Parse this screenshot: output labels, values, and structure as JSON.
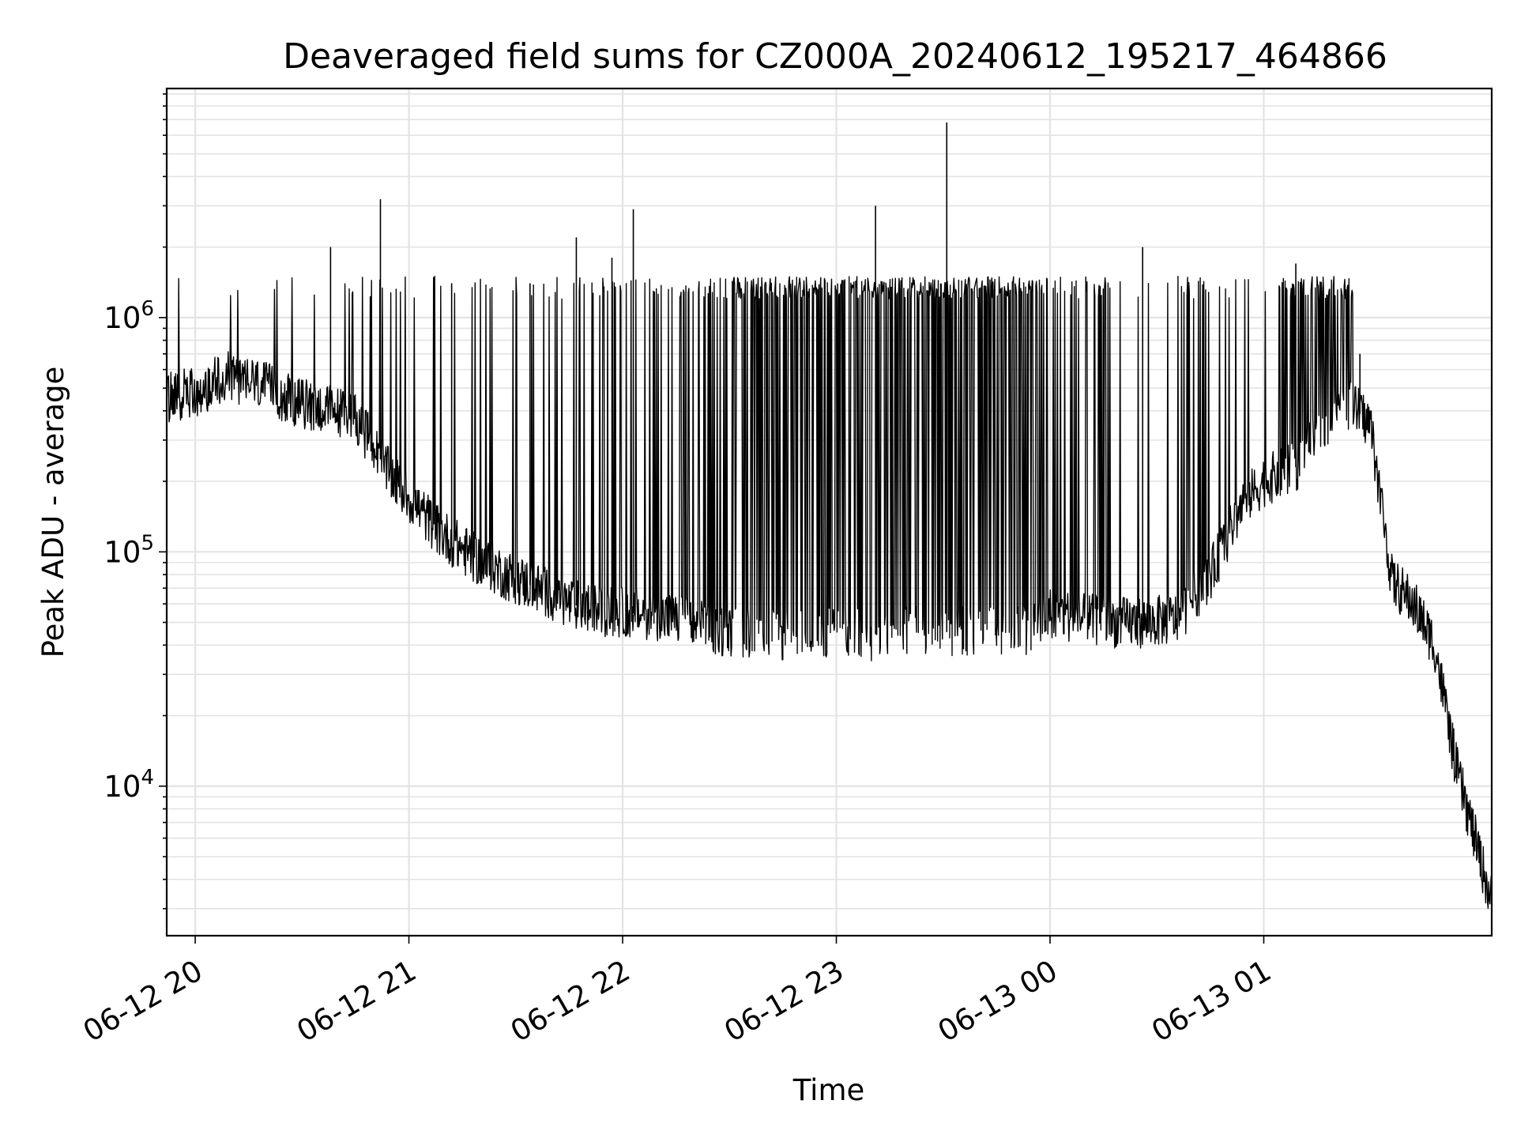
{
  "chart_data": {
    "type": "line",
    "title": "Deaveraged field sums for CZ000A_20240612_195217_464866",
    "xlabel": "Time",
    "ylabel": "Peak ADU - average",
    "yscale": "log",
    "xlim": [
      "2024-06-12 19:52",
      "2024-06-13 02:04"
    ],
    "ylim": [
      2300,
      9500000
    ],
    "x_ticks": [
      {
        "time": "2024-06-12 20:00",
        "label": "06-12 20"
      },
      {
        "time": "2024-06-12 21:00",
        "label": "06-12 21"
      },
      {
        "time": "2024-06-12 22:00",
        "label": "06-12 22"
      },
      {
        "time": "2024-06-12 23:00",
        "label": "06-12 23"
      },
      {
        "time": "2024-06-13 00:00",
        "label": "06-13 00"
      },
      {
        "time": "2024-06-13 01:00",
        "label": "06-13 01"
      }
    ],
    "y_ticks": [
      {
        "value": 10000,
        "base": "10",
        "exp": "4"
      },
      {
        "value": 100000,
        "base": "10",
        "exp": "5"
      },
      {
        "value": 1000000,
        "base": "10",
        "exp": "6"
      }
    ],
    "grid": true,
    "line_color": "#000000",
    "baseline": {
      "x": [
        "2024-06-12 19:52",
        "2024-06-12 20:00",
        "2024-06-12 20:09",
        "2024-06-12 20:18",
        "2024-06-12 20:27",
        "2024-06-12 20:36",
        "2024-06-12 20:45",
        "2024-06-12 20:54",
        "2024-06-12 21:00",
        "2024-06-12 21:09",
        "2024-06-12 21:18",
        "2024-06-12 21:27",
        "2024-06-12 21:36",
        "2024-06-12 21:45",
        "2024-06-12 21:54",
        "2024-06-12 22:00",
        "2024-06-12 22:09",
        "2024-06-12 22:18",
        "2024-06-12 22:27",
        "2024-06-12 22:36",
        "2024-06-12 22:45",
        "2024-06-12 22:54",
        "2024-06-12 23:00",
        "2024-06-12 23:09",
        "2024-06-12 23:18",
        "2024-06-12 23:27",
        "2024-06-12 23:36",
        "2024-06-12 23:45",
        "2024-06-12 23:54",
        "2024-06-13 00:00",
        "2024-06-13 00:09",
        "2024-06-13 00:18",
        "2024-06-13 00:27",
        "2024-06-13 00:36",
        "2024-06-13 00:45",
        "2024-06-13 00:54",
        "2024-06-13 01:00",
        "2024-06-13 01:09",
        "2024-06-13 01:18",
        "2024-06-13 01:24",
        "2024-06-13 01:30",
        "2024-06-13 01:36",
        "2024-06-13 01:42",
        "2024-06-13 01:48",
        "2024-06-13 01:54",
        "2024-06-13 02:04"
      ],
      "y": [
        450000,
        480000,
        560000,
        520000,
        440000,
        410000,
        380000,
        220000,
        170000,
        120000,
        95000,
        80000,
        70000,
        60000,
        56000,
        55000,
        54000,
        50000,
        46000,
        45000,
        44000,
        45000,
        46000,
        44000,
        46000,
        45000,
        46000,
        45000,
        47000,
        55000,
        52000,
        50000,
        50000,
        52000,
        80000,
        160000,
        200000,
        230000,
        350000,
        430000,
        350000,
        75000,
        60000,
        40000,
        12000,
        3200
      ]
    },
    "spikes": [
      {
        "x": "2024-06-12 20:38",
        "y": 2000000
      },
      {
        "x": "2024-06-12 20:52",
        "y": 3200000
      },
      {
        "x": "2024-06-12 21:12",
        "y": 1400000
      },
      {
        "x": "2024-06-12 21:34",
        "y": 1400000
      },
      {
        "x": "2024-06-12 21:47",
        "y": 2200000
      },
      {
        "x": "2024-06-12 21:57",
        "y": 1800000
      },
      {
        "x": "2024-06-12 22:03",
        "y": 2900000
      },
      {
        "x": "2024-06-12 23:11",
        "y": 3000000
      },
      {
        "x": "2024-06-12 23:31",
        "y": 6800000
      },
      {
        "x": "2024-06-13 00:26",
        "y": 2000000
      },
      {
        "x": "2024-06-13 01:09",
        "y": 1700000
      },
      {
        "x": "2024-06-13 01:27",
        "y": 700000
      }
    ]
  }
}
